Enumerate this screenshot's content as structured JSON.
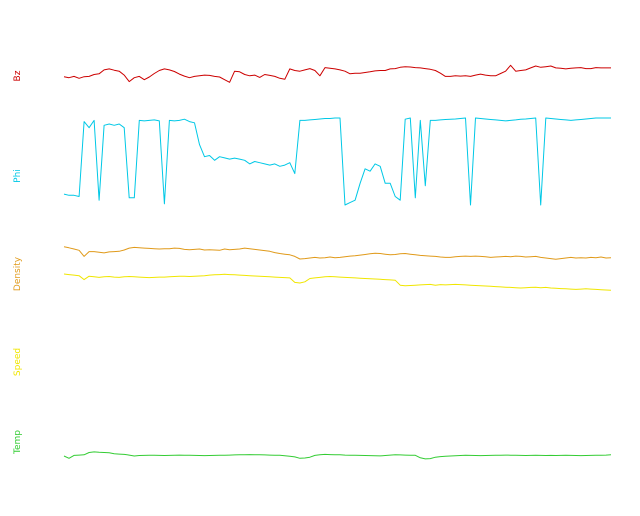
{
  "chart_data": {
    "type": "line",
    "title": "",
    "xlabel": "",
    "grid": false,
    "legend": "none",
    "x": [
      0,
      1,
      2,
      3,
      4,
      5,
      6,
      7,
      8,
      9,
      10,
      11,
      12,
      13,
      14,
      15,
      16,
      17,
      18,
      19,
      20,
      21,
      22,
      23,
      24,
      25,
      26,
      27,
      28,
      29,
      30,
      31,
      32,
      33,
      34,
      35,
      36,
      37,
      38,
      39,
      40,
      41,
      42,
      43,
      44,
      45,
      46,
      47,
      48,
      49,
      50,
      51,
      52,
      53,
      54,
      55,
      56,
      57,
      58,
      59,
      60,
      61,
      62,
      63,
      64,
      65,
      66,
      67,
      68,
      69,
      70,
      71,
      72,
      73,
      74,
      75,
      76,
      77,
      78,
      79,
      80,
      81,
      82,
      83,
      84,
      85,
      86,
      87,
      88,
      89,
      90,
      91,
      92,
      93,
      94,
      95,
      96,
      97,
      98,
      99,
      100,
      101,
      102,
      103,
      104,
      105,
      106,
      107,
      108,
      109
    ],
    "series": [
      {
        "name": "Bz",
        "color": "#cc0000",
        "ylim": [
          -1,
          1
        ],
        "values": [
          -0.13,
          -0.16,
          -0.12,
          -0.18,
          -0.13,
          -0.12,
          -0.06,
          -0.04,
          0.08,
          0.11,
          0.07,
          0.04,
          -0.08,
          -0.28,
          -0.16,
          -0.12,
          -0.22,
          -0.14,
          -0.03,
          0.06,
          0.11,
          0.08,
          0.03,
          -0.05,
          -0.11,
          -0.16,
          -0.12,
          -0.1,
          -0.08,
          -0.09,
          -0.12,
          -0.14,
          -0.22,
          -0.3,
          0.04,
          0.02,
          -0.06,
          -0.1,
          -0.08,
          -0.15,
          -0.06,
          -0.09,
          -0.12,
          -0.18,
          -0.21,
          0.11,
          0.06,
          0.04,
          0.08,
          0.12,
          0.06,
          -0.1,
          0.15,
          0.13,
          0.11,
          0.08,
          0.04,
          -0.04,
          -0.02,
          -0.02,
          0.0,
          0.02,
          0.05,
          0.06,
          0.06,
          0.11,
          0.12,
          0.16,
          0.18,
          0.17,
          0.15,
          0.14,
          0.12,
          0.1,
          0.06,
          -0.02,
          -0.12,
          -0.12,
          -0.1,
          -0.11,
          -0.1,
          -0.12,
          -0.08,
          -0.05,
          -0.08,
          -0.1,
          -0.1,
          -0.03,
          0.04,
          0.22,
          0.04,
          0.06,
          0.08,
          0.14,
          0.2,
          0.16,
          0.18,
          0.2,
          0.14,
          0.13,
          0.11,
          0.13,
          0.14,
          0.15,
          0.12,
          0.12,
          0.15,
          0.14,
          0.14,
          0.14
        ]
      },
      {
        "name": "Phi",
        "color": "#00c8e6",
        "ylim": [
          0,
          360
        ],
        "values": [
          45,
          40,
          40,
          35,
          345,
          320,
          350,
          20,
          330,
          335,
          330,
          335,
          320,
          30,
          30,
          350,
          348,
          350,
          352,
          348,
          5,
          350,
          348,
          350,
          355,
          345,
          340,
          250,
          200,
          205,
          185,
          200,
          195,
          190,
          194,
          190,
          185,
          170,
          180,
          175,
          170,
          165,
          170,
          160,
          165,
          175,
          130,
          350,
          350,
          352,
          354,
          356,
          358,
          358,
          360,
          360,
          0,
          10,
          20,
          90,
          150,
          140,
          170,
          160,
          90,
          90,
          35,
          20,
          355,
          360,
          30,
          350,
          80,
          350,
          350,
          352,
          354,
          355,
          356,
          358,
          360,
          0,
          360,
          358,
          356,
          354,
          352,
          350,
          348,
          350,
          352,
          355,
          356,
          358,
          360,
          0,
          360,
          358,
          356,
          354,
          352,
          350,
          352,
          354,
          356,
          358,
          360,
          360,
          360,
          360
        ]
      },
      {
        "name": "Density",
        "color": "#e09a1a",
        "ylim": [
          0,
          25
        ],
        "values": [
          13.5,
          13.2,
          12.8,
          12.4,
          10.5,
          12.0,
          12.0,
          11.8,
          11.6,
          11.9,
          12.0,
          12.1,
          12.5,
          13.1,
          13.3,
          13.2,
          13.1,
          13.0,
          12.9,
          12.8,
          12.9,
          12.9,
          13.1,
          13.0,
          12.7,
          12.6,
          12.7,
          12.8,
          12.5,
          12.6,
          12.5,
          12.4,
          12.8,
          12.6,
          12.7,
          12.8,
          13.1,
          12.9,
          12.7,
          12.5,
          12.3,
          12.1,
          11.7,
          11.4,
          11.2,
          11.0,
          10.5,
          9.7,
          9.8,
          10.0,
          10.2,
          10.0,
          10.1,
          10.3,
          10.1,
          10.2,
          10.4,
          10.6,
          10.7,
          10.9,
          11.1,
          11.3,
          11.5,
          11.4,
          11.2,
          11.0,
          11.1,
          11.3,
          11.4,
          11.2,
          11.0,
          10.8,
          10.7,
          10.6,
          10.5,
          10.3,
          10.2,
          10.2,
          10.4,
          10.5,
          10.6,
          10.5,
          10.6,
          10.5,
          10.4,
          10.2,
          10.3,
          10.4,
          10.5,
          10.4,
          10.6,
          10.5,
          10.3,
          10.4,
          10.5,
          10.2,
          10.0,
          9.8,
          9.6,
          9.8,
          10.0,
          10.2,
          10.0,
          10.1,
          10.0,
          10.2,
          10.1,
          10.3,
          10.0,
          10.1
        ]
      },
      {
        "name": "Speed",
        "color": "#f0e600",
        "ylim": [
          200,
          700
        ],
        "values": [
          600,
          598,
          596,
          594,
          580,
          592,
          590,
          588,
          590,
          591,
          589,
          588,
          590,
          591,
          590,
          589,
          588,
          587,
          588,
          589,
          589,
          590,
          591,
          592,
          592,
          591,
          592,
          593,
          594,
          596,
          597,
          598,
          599,
          598,
          597,
          596,
          595,
          594,
          593,
          592,
          591,
          590,
          589,
          588,
          587,
          586,
          570,
          568,
          572,
          584,
          586,
          588,
          590,
          591,
          590,
          589,
          588,
          587,
          586,
          585,
          584,
          583,
          582,
          581,
          580,
          579,
          578,
          560,
          558,
          559,
          560,
          561,
          562,
          563,
          560,
          562,
          561,
          562,
          563,
          562,
          561,
          560,
          559,
          558,
          557,
          556,
          555,
          554,
          553,
          552,
          551,
          550,
          551,
          552,
          553,
          551,
          552,
          550,
          549,
          548,
          547,
          546,
          545,
          546,
          547,
          546,
          545,
          544,
          543,
          542
        ]
      },
      {
        "name": "Temp",
        "color": "#33cc33",
        "ylim": [
          0,
          600
        ],
        "values": [
          120,
          100,
          125,
          128,
          130,
          150,
          155,
          152,
          150,
          148,
          140,
          136,
          134,
          128,
          120,
          124,
          125,
          126,
          127,
          125,
          124,
          125,
          126,
          128,
          127,
          126,
          125,
          124,
          123,
          124,
          125,
          126,
          127,
          128,
          129,
          130,
          131,
          132,
          131,
          130,
          129,
          128,
          127,
          126,
          122,
          118,
          112,
          100,
          103,
          110,
          125,
          130,
          134,
          132,
          131,
          130,
          128,
          127,
          126,
          125,
          124,
          123,
          122,
          121,
          124,
          128,
          130,
          129,
          128,
          127,
          126,
          105,
          95,
          98,
          110,
          115,
          118,
          120,
          122,
          124,
          126,
          125,
          124,
          123,
          124,
          125,
          126,
          127,
          128,
          127,
          126,
          125,
          124,
          125,
          126,
          125,
          124,
          125,
          124,
          125,
          126,
          125,
          124,
          123,
          124,
          125,
          126,
          127,
          128,
          130
        ]
      }
    ]
  }
}
